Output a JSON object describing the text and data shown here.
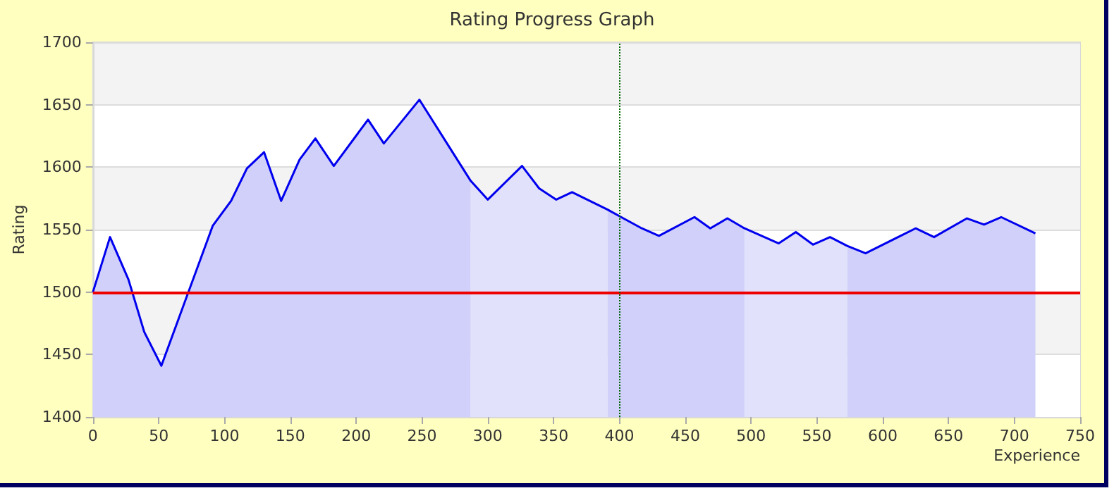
{
  "chart_data": {
    "type": "area",
    "title": "Rating Progress Graph",
    "xlabel": "Experience",
    "ylabel": "Rating",
    "xlim": [
      0,
      750
    ],
    "xticks": [
      0,
      50,
      100,
      150,
      200,
      250,
      300,
      350,
      400,
      450,
      500,
      550,
      600,
      650,
      700,
      750
    ],
    "ylim": [
      1400,
      1700
    ],
    "yticks": [
      1400,
      1450,
      1500,
      1550,
      1600,
      1650,
      1700
    ],
    "grid": "y",
    "marker": "none",
    "series": [
      {
        "color": "#d0d0fb",
        "x": [
          0,
          13,
          27,
          39,
          52,
          91,
          105,
          117,
          130,
          143,
          157,
          169,
          183,
          209,
          221,
          248,
          275,
          287
        ],
        "values": [
          1500,
          1544,
          1510,
          1468,
          1441,
          1553,
          1573,
          1599,
          1612,
          1573,
          1606,
          1623,
          1601,
          1638,
          1619,
          1654,
          1609,
          1589
        ]
      },
      {
        "color": "#e1e1fb",
        "x": [
          287,
          300,
          326,
          339,
          352,
          364,
          391
        ],
        "values": [
          1589,
          1574,
          1601,
          1583,
          1574,
          1580,
          1566
        ]
      },
      {
        "color": "#d0d0fb",
        "x": [
          391,
          403,
          417,
          430,
          457,
          469,
          482,
          495
        ],
        "values": [
          1566,
          1559,
          1551,
          1545,
          1560,
          1551,
          1559,
          1551
        ]
      },
      {
        "color": "#e1e1fb",
        "x": [
          495,
          521,
          534,
          547,
          560,
          573
        ],
        "values": [
          1551,
          1539,
          1548,
          1538,
          1544,
          1537
        ]
      },
      {
        "color": "#d0d0fb",
        "x": [
          573,
          587,
          625,
          639,
          664,
          677,
          690,
          716
        ],
        "values": [
          1537,
          1531,
          1551,
          1544,
          1559,
          1554,
          1560,
          1547
        ]
      },
      {
        "type": "line",
        "color": "#0000ee",
        "x": [
          0,
          13,
          27,
          39,
          52,
          91,
          105,
          117,
          130,
          143,
          157,
          169,
          183,
          209,
          221,
          248,
          275,
          287,
          300,
          326,
          339,
          352,
          364,
          391,
          403,
          417,
          430,
          457,
          469,
          482,
          495,
          521,
          534,
          547,
          560,
          573,
          587,
          625,
          639,
          664,
          677,
          690,
          716
        ],
        "values": [
          1500,
          1544,
          1510,
          1468,
          1441,
          1553,
          1573,
          1599,
          1612,
          1573,
          1606,
          1623,
          1601,
          1638,
          1619,
          1654,
          1609,
          1589,
          1574,
          1601,
          1583,
          1574,
          1580,
          1566,
          1559,
          1551,
          1545,
          1560,
          1551,
          1559,
          1551,
          1539,
          1548,
          1538,
          1544,
          1537,
          1531,
          1551,
          1544,
          1559,
          1554,
          1560,
          1547
        ]
      }
    ],
    "ref_lines": [
      {
        "axis": "y",
        "value": 1500,
        "color": "#ee0000",
        "line_style": "solid"
      },
      {
        "axis": "x",
        "value": 400,
        "color": "#006600",
        "line_style": "dotted"
      }
    ]
  }
}
